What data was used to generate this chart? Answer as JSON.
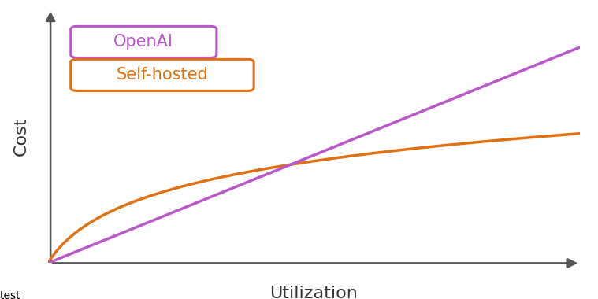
{
  "background_color": "#ffffff",
  "openai_color": "#bb55cc",
  "selfhosted_color": "#e07010",
  "xlabel": "Utilization",
  "ylabel": "Cost",
  "xlabel_fontsize": 16,
  "ylabel_fontsize": 16,
  "legend_openai": "OpenAI",
  "legend_selfhosted": "Self-hosted",
  "legend_fontsize": 15,
  "line_width": 2.5,
  "axis_color": "#555555",
  "xlim": [
    0,
    10
  ],
  "ylim": [
    0,
    10
  ]
}
